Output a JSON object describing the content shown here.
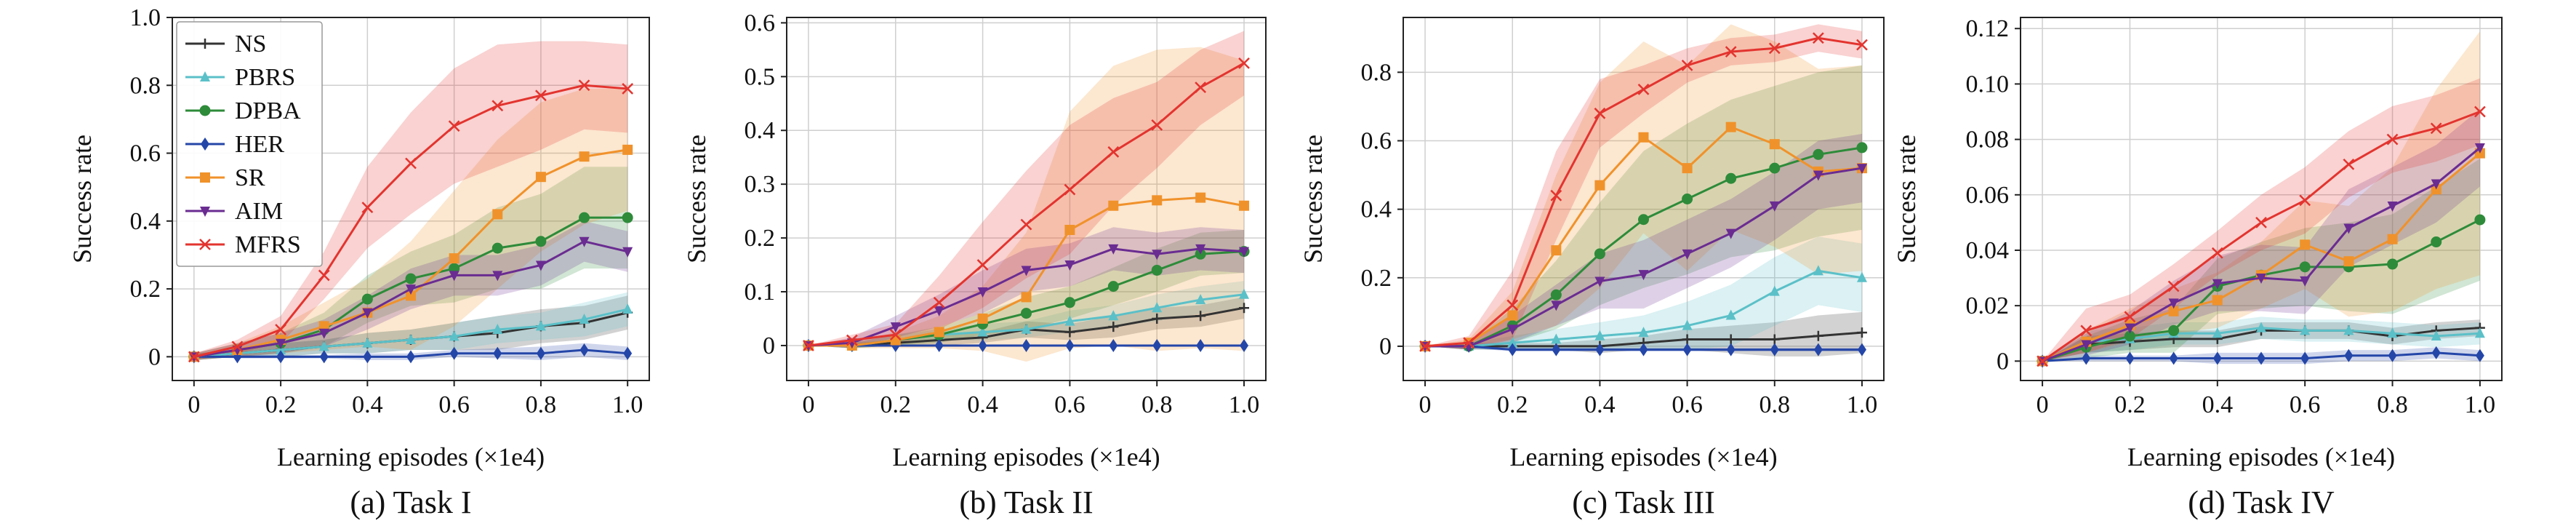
{
  "chart_data": [
    {
      "type": "line",
      "caption": "(a) Task I",
      "xlabel": "Learning episodes (×1e4)",
      "ylabel": "Success rate",
      "xlim": [
        -0.05,
        1.05
      ],
      "ylim": [
        -0.07,
        1.0
      ],
      "xticks": [
        0,
        0.2,
        0.4,
        0.6,
        0.8,
        1.0
      ],
      "xtick_labels": [
        "0",
        "0.2",
        "0.4",
        "0.6",
        "0.8",
        "1.0"
      ],
      "yticks": [
        0,
        0.2,
        0.4,
        0.6,
        0.8,
        1.0
      ],
      "ytick_labels": [
        "0",
        "0.2",
        "0.4",
        "0.6",
        "0.8",
        "1.0"
      ],
      "legend": "top-left",
      "x": [
        0,
        0.1,
        0.2,
        0.3,
        0.4,
        0.5,
        0.6,
        0.7,
        0.8,
        0.9,
        1.0
      ],
      "series": [
        {
          "name": "NS",
          "color": "#333333",
          "marker": "plus",
          "values": [
            0,
            0.01,
            0.02,
            0.03,
            0.04,
            0.05,
            0.06,
            0.07,
            0.09,
            0.1,
            0.13
          ],
          "band": [
            0.01,
            0.01,
            0.02,
            0.02,
            0.03,
            0.03,
            0.04,
            0.05,
            0.05,
            0.05,
            0.05
          ]
        },
        {
          "name": "PBRS",
          "color": "#5bc0c8",
          "marker": "triangle",
          "values": [
            0,
            0.01,
            0.02,
            0.03,
            0.04,
            0.05,
            0.06,
            0.08,
            0.09,
            0.11,
            0.14
          ],
          "band": [
            0.01,
            0.01,
            0.02,
            0.02,
            0.03,
            0.03,
            0.04,
            0.04,
            0.04,
            0.05,
            0.05
          ]
        },
        {
          "name": "DPBA",
          "color": "#2e8b3a",
          "marker": "circle",
          "values": [
            0,
            0.02,
            0.04,
            0.08,
            0.17,
            0.23,
            0.26,
            0.32,
            0.34,
            0.41,
            0.41
          ],
          "band": [
            0.01,
            0.02,
            0.03,
            0.05,
            0.07,
            0.08,
            0.1,
            0.12,
            0.14,
            0.15,
            0.15
          ]
        },
        {
          "name": "HER",
          "color": "#2446a8",
          "marker": "diamond",
          "values": [
            0,
            0,
            0,
            0,
            0,
            0,
            0.01,
            0.01,
            0.01,
            0.02,
            0.01
          ],
          "band": [
            0,
            0.005,
            0.005,
            0.005,
            0.01,
            0.01,
            0.01,
            0.015,
            0.02,
            0.02,
            0.02
          ]
        },
        {
          "name": "SR",
          "color": "#f0922b",
          "marker": "square",
          "values": [
            0,
            0.02,
            0.05,
            0.09,
            0.13,
            0.18,
            0.29,
            0.42,
            0.53,
            0.59,
            0.61
          ],
          "band": [
            0.01,
            0.02,
            0.04,
            0.07,
            0.1,
            0.16,
            0.2,
            0.22,
            0.22,
            0.2,
            0.18
          ]
        },
        {
          "name": "AIM",
          "color": "#6a2c91",
          "marker": "triangle-down",
          "values": [
            0,
            0.02,
            0.04,
            0.07,
            0.13,
            0.2,
            0.24,
            0.24,
            0.27,
            0.34,
            0.31
          ],
          "band": [
            0.01,
            0.02,
            0.03,
            0.04,
            0.05,
            0.06,
            0.06,
            0.06,
            0.06,
            0.06,
            0.06
          ]
        },
        {
          "name": "MFRS",
          "color": "#e3342f",
          "marker": "x",
          "values": [
            0,
            0.03,
            0.08,
            0.24,
            0.44,
            0.57,
            0.68,
            0.74,
            0.77,
            0.8,
            0.79
          ],
          "band": [
            0.01,
            0.02,
            0.04,
            0.07,
            0.12,
            0.15,
            0.17,
            0.18,
            0.16,
            0.13,
            0.13
          ]
        }
      ]
    },
    {
      "type": "line",
      "caption": "(b) Task II",
      "xlabel": "Learning episodes (×1e4)",
      "ylabel": "Success rate",
      "xlim": [
        -0.05,
        1.05
      ],
      "ylim": [
        -0.065,
        0.61
      ],
      "xticks": [
        0,
        0.2,
        0.4,
        0.6,
        0.8,
        1.0
      ],
      "xtick_labels": [
        "0",
        "0.2",
        "0.4",
        "0.6",
        "0.8",
        "1.0"
      ],
      "yticks": [
        0,
        0.1,
        0.2,
        0.3,
        0.4,
        0.5,
        0.6
      ],
      "ytick_labels": [
        "0",
        "0.1",
        "0.2",
        "0.3",
        "0.4",
        "0.5",
        "0.6"
      ],
      "legend": "none",
      "x": [
        0,
        0.1,
        0.2,
        0.3,
        0.4,
        0.5,
        0.6,
        0.7,
        0.8,
        0.9,
        1.0
      ],
      "series": [
        {
          "name": "NS",
          "color": "#333333",
          "marker": "plus",
          "values": [
            0,
            0,
            0.005,
            0.01,
            0.015,
            0.03,
            0.025,
            0.035,
            0.05,
            0.055,
            0.07
          ],
          "band": [
            0,
            0.005,
            0.005,
            0.01,
            0.01,
            0.015,
            0.015,
            0.02,
            0.02,
            0.02,
            0.02
          ]
        },
        {
          "name": "PBRS",
          "color": "#5bc0c8",
          "marker": "triangle",
          "values": [
            0,
            0,
            0.01,
            0.02,
            0.025,
            0.03,
            0.045,
            0.055,
            0.07,
            0.085,
            0.095
          ],
          "band": [
            0,
            0.005,
            0.01,
            0.01,
            0.015,
            0.015,
            0.02,
            0.02,
            0.025,
            0.025,
            0.025
          ]
        },
        {
          "name": "DPBA",
          "color": "#2e8b3a",
          "marker": "circle",
          "values": [
            0,
            0,
            0.01,
            0.02,
            0.04,
            0.06,
            0.08,
            0.11,
            0.14,
            0.17,
            0.175
          ],
          "band": [
            0,
            0.005,
            0.01,
            0.015,
            0.02,
            0.03,
            0.03,
            0.035,
            0.04,
            0.04,
            0.04
          ]
        },
        {
          "name": "HER",
          "color": "#2446a8",
          "marker": "diamond",
          "values": [
            0,
            0,
            0,
            0,
            0,
            0,
            0,
            0,
            0,
            0,
            0
          ],
          "band": [
            0,
            0.002,
            0.002,
            0.002,
            0.002,
            0.002,
            0.002,
            0.002,
            0.002,
            0.002,
            0.002
          ]
        },
        {
          "name": "SR",
          "color": "#f0922b",
          "marker": "square",
          "values": [
            0,
            0,
            0.01,
            0.025,
            0.05,
            0.09,
            0.215,
            0.26,
            0.27,
            0.275,
            0.26
          ],
          "band": [
            0,
            0.005,
            0.015,
            0.03,
            0.06,
            0.12,
            0.22,
            0.26,
            0.28,
            0.28,
            0.27
          ]
        },
        {
          "name": "AIM",
          "color": "#6a2c91",
          "marker": "triangle-down",
          "values": [
            0,
            0.005,
            0.035,
            0.065,
            0.1,
            0.14,
            0.15,
            0.18,
            0.17,
            0.18,
            0.175
          ],
          "band": [
            0,
            0.01,
            0.02,
            0.03,
            0.04,
            0.04,
            0.04,
            0.04,
            0.04,
            0.04,
            0.04
          ]
        },
        {
          "name": "MFRS",
          "color": "#e3342f",
          "marker": "x",
          "values": [
            0,
            0.01,
            0.02,
            0.08,
            0.15,
            0.225,
            0.29,
            0.36,
            0.41,
            0.48,
            0.525
          ],
          "band": [
            0,
            0.01,
            0.02,
            0.05,
            0.08,
            0.1,
            0.12,
            0.1,
            0.08,
            0.07,
            0.06
          ]
        }
      ]
    },
    {
      "type": "line",
      "caption": "(c) Task III",
      "xlabel": "Learning episodes (×1e4)",
      "ylabel": "Success rate",
      "xlim": [
        -0.05,
        1.05
      ],
      "ylim": [
        -0.1,
        0.96
      ],
      "xticks": [
        0,
        0.2,
        0.4,
        0.6,
        0.8,
        1.0
      ],
      "xtick_labels": [
        "0",
        "0.2",
        "0.4",
        "0.6",
        "0.8",
        "1.0"
      ],
      "yticks": [
        0,
        0.2,
        0.4,
        0.6,
        0.8
      ],
      "ytick_labels": [
        "0",
        "0.2",
        "0.4",
        "0.6",
        "0.8"
      ],
      "legend": "none",
      "x": [
        0,
        0.1,
        0.2,
        0.3,
        0.4,
        0.5,
        0.6,
        0.7,
        0.8,
        0.9,
        1.0
      ],
      "series": [
        {
          "name": "NS",
          "color": "#333333",
          "marker": "plus",
          "values": [
            0,
            0,
            0,
            0,
            0,
            0.01,
            0.02,
            0.02,
            0.02,
            0.03,
            0.04
          ],
          "band": [
            0,
            0.01,
            0.01,
            0.01,
            0.02,
            0.02,
            0.03,
            0.04,
            0.05,
            0.06,
            0.06
          ]
        },
        {
          "name": "PBRS",
          "color": "#5bc0c8",
          "marker": "triangle",
          "values": [
            0,
            0,
            0.01,
            0.02,
            0.03,
            0.04,
            0.06,
            0.09,
            0.16,
            0.22,
            0.2
          ],
          "band": [
            0,
            0.01,
            0.02,
            0.03,
            0.04,
            0.05,
            0.07,
            0.09,
            0.1,
            0.1,
            0.1
          ]
        },
        {
          "name": "DPBA",
          "color": "#2e8b3a",
          "marker": "circle",
          "values": [
            0,
            0,
            0.06,
            0.15,
            0.27,
            0.37,
            0.43,
            0.49,
            0.52,
            0.56,
            0.58
          ],
          "band": [
            0,
            0.01,
            0.05,
            0.1,
            0.15,
            0.2,
            0.22,
            0.23,
            0.24,
            0.24,
            0.24
          ]
        },
        {
          "name": "HER",
          "color": "#2446a8",
          "marker": "diamond",
          "values": [
            0,
            0,
            -0.01,
            -0.01,
            -0.01,
            -0.01,
            -0.01,
            -0.01,
            -0.01,
            -0.01,
            -0.01
          ],
          "band": [
            0,
            0.005,
            0.005,
            0.005,
            0.005,
            0.005,
            0.005,
            0.005,
            0.005,
            0.005,
            0.005
          ]
        },
        {
          "name": "SR",
          "color": "#f0922b",
          "marker": "square",
          "values": [
            0,
            0.01,
            0.09,
            0.28,
            0.47,
            0.61,
            0.52,
            0.64,
            0.59,
            0.51,
            0.52
          ],
          "band": [
            0,
            0.01,
            0.07,
            0.22,
            0.3,
            0.28,
            0.3,
            0.3,
            0.3,
            0.3,
            0.3
          ]
        },
        {
          "name": "AIM",
          "color": "#6a2c91",
          "marker": "triangle-down",
          "values": [
            0,
            0,
            0.05,
            0.12,
            0.19,
            0.21,
            0.27,
            0.33,
            0.41,
            0.5,
            0.52
          ],
          "band": [
            0,
            0.01,
            0.04,
            0.06,
            0.08,
            0.1,
            0.1,
            0.1,
            0.1,
            0.1,
            0.1
          ]
        },
        {
          "name": "MFRS",
          "color": "#e3342f",
          "marker": "x",
          "values": [
            0,
            0.01,
            0.12,
            0.44,
            0.68,
            0.75,
            0.82,
            0.86,
            0.87,
            0.9,
            0.88
          ],
          "band": [
            0,
            0.02,
            0.1,
            0.13,
            0.1,
            0.07,
            0.05,
            0.04,
            0.04,
            0.04,
            0.04
          ]
        }
      ]
    },
    {
      "type": "line",
      "caption": "(d) Task IV",
      "xlabel": "Learning episodes (×1e4)",
      "ylabel": "Success rate",
      "xlim": [
        -0.05,
        1.05
      ],
      "ylim": [
        -0.007,
        0.124
      ],
      "xticks": [
        0,
        0.2,
        0.4,
        0.6,
        0.8,
        1.0
      ],
      "xtick_labels": [
        "0",
        "0.2",
        "0.4",
        "0.6",
        "0.8",
        "1.0"
      ],
      "yticks": [
        0,
        0.02,
        0.04,
        0.06,
        0.08,
        0.1,
        0.12
      ],
      "ytick_labels": [
        "0",
        "0.02",
        "0.04",
        "0.06",
        "0.08",
        "0.10",
        "0.12"
      ],
      "legend": "none",
      "x": [
        0,
        0.1,
        0.2,
        0.3,
        0.4,
        0.5,
        0.6,
        0.7,
        0.8,
        0.9,
        1.0
      ],
      "series": [
        {
          "name": "NS",
          "color": "#333333",
          "marker": "plus",
          "values": [
            0,
            0.006,
            0.007,
            0.008,
            0.008,
            0.011,
            0.011,
            0.011,
            0.009,
            0.011,
            0.012
          ],
          "band": [
            0,
            0.003,
            0.003,
            0.003,
            0.003,
            0.003,
            0.003,
            0.003,
            0.003,
            0.003,
            0.003
          ]
        },
        {
          "name": "PBRS",
          "color": "#5bc0c8",
          "marker": "triangle",
          "values": [
            0,
            0.007,
            0.008,
            0.01,
            0.01,
            0.012,
            0.011,
            0.011,
            0.01,
            0.009,
            0.01
          ],
          "band": [
            0,
            0.004,
            0.004,
            0.004,
            0.004,
            0.004,
            0.004,
            0.004,
            0.004,
            0.004,
            0.004
          ]
        },
        {
          "name": "DPBA",
          "color": "#2e8b3a",
          "marker": "circle",
          "values": [
            0,
            0.005,
            0.009,
            0.011,
            0.027,
            0.031,
            0.034,
            0.034,
            0.035,
            0.043,
            0.051
          ],
          "band": [
            0,
            0.004,
            0.006,
            0.008,
            0.01,
            0.012,
            0.014,
            0.016,
            0.018,
            0.02,
            0.022
          ]
        },
        {
          "name": "HER",
          "color": "#2446a8",
          "marker": "diamond",
          "values": [
            0,
            0.001,
            0.001,
            0.001,
            0.001,
            0.001,
            0.001,
            0.002,
            0.002,
            0.003,
            0.002
          ],
          "band": [
            0,
            0.001,
            0.001,
            0.001,
            0.002,
            0.002,
            0.002,
            0.002,
            0.002,
            0.002,
            0.002
          ]
        },
        {
          "name": "SR",
          "color": "#f0922b",
          "marker": "square",
          "values": [
            0,
            0.007,
            0.013,
            0.018,
            0.022,
            0.031,
            0.042,
            0.036,
            0.044,
            0.062,
            0.075
          ],
          "band": [
            0,
            0.004,
            0.006,
            0.008,
            0.01,
            0.012,
            0.016,
            0.02,
            0.026,
            0.036,
            0.044
          ]
        },
        {
          "name": "AIM",
          "color": "#6a2c91",
          "marker": "triangle-down",
          "values": [
            0,
            0.006,
            0.012,
            0.021,
            0.028,
            0.03,
            0.029,
            0.048,
            0.056,
            0.064,
            0.077
          ],
          "band": [
            0,
            0.004,
            0.006,
            0.008,
            0.01,
            0.012,
            0.012,
            0.014,
            0.014,
            0.014,
            0.014
          ]
        },
        {
          "name": "MFRS",
          "color": "#e3342f",
          "marker": "x",
          "values": [
            0,
            0.011,
            0.016,
            0.027,
            0.039,
            0.05,
            0.058,
            0.071,
            0.08,
            0.084,
            0.09
          ],
          "band": [
            0,
            0.008,
            0.008,
            0.008,
            0.008,
            0.01,
            0.012,
            0.012,
            0.012,
            0.012,
            0.012
          ]
        }
      ]
    }
  ]
}
